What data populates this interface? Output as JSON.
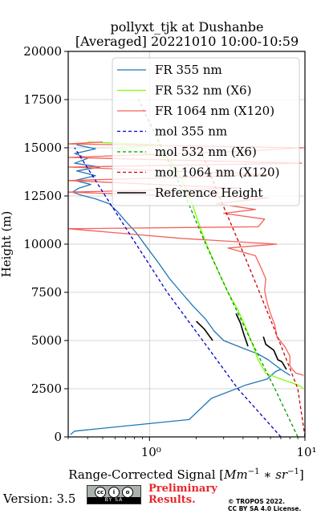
{
  "figure": {
    "title_line1": "pollyxt_tjk at Dushanbe",
    "title_line2": "[Averaged] 20221010 10:00-10:59",
    "version": "Version: 3.5",
    "license_badge": "BY SA",
    "license_icons": [
      "cc",
      "i",
      "o"
    ],
    "preliminary_line1": "Preliminary",
    "preliminary_line2": "Results.",
    "copyright_line1": "© TROPOS 2022.",
    "copyright_line2": "CC BY SA 4.0 License.",
    "preliminary_color": "#e8262a"
  },
  "chart_data": {
    "type": "line",
    "xlabel": "Range-Corrected Signal [Mm⁻¹ * sr⁻¹]",
    "ylabel": "Height (m)",
    "x_scale": "log",
    "xlim": [
      0.3,
      10
    ],
    "ylim": [
      0,
      20000
    ],
    "x_ticks": [
      1,
      10
    ],
    "x_tick_labels": [
      "10⁰",
      "10¹"
    ],
    "y_ticks": [
      0,
      2500,
      5000,
      7500,
      10000,
      12500,
      15000,
      17500,
      20000
    ],
    "y_tick_labels": [
      "0",
      "2500",
      "5000",
      "7500",
      "10000",
      "12500",
      "15000",
      "17500",
      "20000"
    ],
    "grid": true,
    "legend_position": "top-right",
    "series": [
      {
        "name": "FR 355 nm",
        "color": "#1f77b4",
        "style": "solid",
        "points": [
          [
            0.31,
            120
          ],
          [
            0.33,
            300
          ],
          [
            1.8,
            900
          ],
          [
            2.5,
            2000
          ],
          [
            4.2,
            2700
          ],
          [
            5.7,
            3000
          ],
          [
            6.5,
            3400
          ],
          [
            7.0,
            3500
          ],
          [
            8.0,
            3200
          ],
          [
            7.0,
            3500
          ],
          [
            5.8,
            4000
          ],
          [
            5.0,
            4300
          ],
          [
            4.0,
            4600
          ],
          [
            3.0,
            5000
          ],
          [
            2.6,
            5500
          ],
          [
            2.3,
            6100
          ],
          [
            1.9,
            6800
          ],
          [
            1.6,
            7500
          ],
          [
            1.35,
            8200
          ],
          [
            1.15,
            9000
          ],
          [
            0.97,
            9800
          ],
          [
            0.82,
            10600
          ],
          [
            0.7,
            11200
          ],
          [
            0.62,
            11700
          ],
          [
            0.55,
            12100
          ],
          [
            0.45,
            12350
          ],
          [
            0.36,
            12550
          ],
          [
            0.32,
            12700
          ],
          [
            0.35,
            12900
          ],
          [
            0.42,
            13100
          ],
          [
            0.33,
            13300
          ],
          [
            0.45,
            13550
          ],
          [
            0.34,
            13800
          ],
          [
            0.48,
            14000
          ],
          [
            0.33,
            14200
          ],
          [
            0.4,
            14450
          ],
          [
            0.33,
            14700
          ],
          [
            0.45,
            14950
          ],
          [
            0.34,
            15150
          ]
        ]
      },
      {
        "name": "FR 532 nm (X6)",
        "color": "#7fff00",
        "style": "solid",
        "points": [
          [
            9.8,
            2500
          ],
          [
            9.0,
            2700
          ],
          [
            7.0,
            3000
          ],
          [
            5.6,
            3300
          ],
          [
            5.0,
            4000
          ],
          [
            4.5,
            5000
          ],
          [
            4.1,
            5800
          ],
          [
            3.7,
            6600
          ],
          [
            3.2,
            7500
          ],
          [
            2.8,
            8500
          ],
          [
            2.5,
            9400
          ],
          [
            2.25,
            10300
          ],
          [
            2.05,
            11200
          ],
          [
            1.9,
            12000
          ],
          [
            1.75,
            12700
          ],
          [
            1.6,
            13400
          ],
          [
            1.45,
            14000
          ],
          [
            1.3,
            14500
          ],
          [
            0.6,
            15000
          ],
          [
            1.2,
            15150
          ],
          [
            0.4,
            15300
          ]
        ]
      },
      {
        "name": "FR 1064 nm (X120)",
        "color": "#f4625b",
        "style": "solid",
        "points": [
          [
            9.8,
            3200
          ],
          [
            8.8,
            3300
          ],
          [
            8.3,
            3500
          ],
          [
            8.0,
            3700
          ],
          [
            8.0,
            4200
          ],
          [
            7.4,
            4700
          ],
          [
            6.6,
            5200
          ],
          [
            6.4,
            5800
          ],
          [
            6.0,
            6400
          ],
          [
            5.7,
            7000
          ],
          [
            5.5,
            7600
          ],
          [
            5.6,
            8200
          ],
          [
            5.2,
            8800
          ],
          [
            4.8,
            9400
          ],
          [
            3.2,
            9800
          ],
          [
            6.6,
            10000
          ],
          [
            1.6,
            10300
          ],
          [
            0.3,
            10800
          ],
          [
            5.0,
            10900
          ],
          [
            5.5,
            11300
          ],
          [
            3.0,
            11600
          ],
          [
            4.8,
            11800
          ],
          [
            2.7,
            12100
          ],
          [
            5.8,
            12400
          ],
          [
            1.0,
            12550
          ],
          [
            0.3,
            12700
          ],
          [
            3.8,
            12900
          ],
          [
            0.3,
            13300
          ],
          [
            6.0,
            13600
          ],
          [
            0.3,
            14000
          ],
          [
            9.5,
            14200
          ],
          [
            0.3,
            14500
          ],
          [
            3.5,
            14800
          ],
          [
            9.8,
            15000
          ],
          [
            0.3,
            15200
          ],
          [
            0.5,
            15300
          ]
        ]
      },
      {
        "name": "mol 355 nm",
        "color": "#0000cd",
        "style": "dashed",
        "points": [
          [
            7.0,
            0
          ],
          [
            3.7,
            2500
          ],
          [
            2.2,
            5000
          ],
          [
            1.3,
            7500
          ],
          [
            0.82,
            10000
          ],
          [
            0.52,
            12500
          ],
          [
            0.33,
            15000
          ]
        ]
      },
      {
        "name": "mol 532 nm (X6)",
        "color": "#009900",
        "style": "dashed",
        "points": [
          [
            9.0,
            0
          ],
          [
            6.4,
            2500
          ],
          [
            4.5,
            5000
          ],
          [
            3.2,
            7500
          ],
          [
            2.3,
            10000
          ],
          [
            1.7,
            12500
          ],
          [
            1.2,
            15000
          ],
          [
            0.85,
            17500
          ]
        ]
      },
      {
        "name": "mol 1064 nm (X120)",
        "color": "#cc0000",
        "style": "dashed",
        "points": [
          [
            10.0,
            0
          ],
          [
            9.0,
            2500
          ],
          [
            6.8,
            5000
          ],
          [
            5.1,
            7500
          ],
          [
            3.8,
            10000
          ],
          [
            2.8,
            12500
          ],
          [
            2.1,
            15000
          ]
        ]
      },
      {
        "name": "Reference Height",
        "color": "#000000",
        "style": "solid",
        "segments": [
          [
            [
              2.0,
              6000
            ],
            [
              2.25,
              5600
            ],
            [
              2.55,
              5000
            ]
          ],
          [
            [
              3.6,
              6400
            ],
            [
              3.85,
              5900
            ],
            [
              4.05,
              5300
            ],
            [
              4.3,
              4700
            ]
          ],
          [
            [
              5.4,
              5200
            ],
            [
              5.6,
              4800
            ],
            [
              6.3,
              4500
            ],
            [
              6.7,
              4000
            ],
            [
              7.1,
              3900
            ],
            [
              7.6,
              3500
            ]
          ]
        ]
      }
    ]
  }
}
